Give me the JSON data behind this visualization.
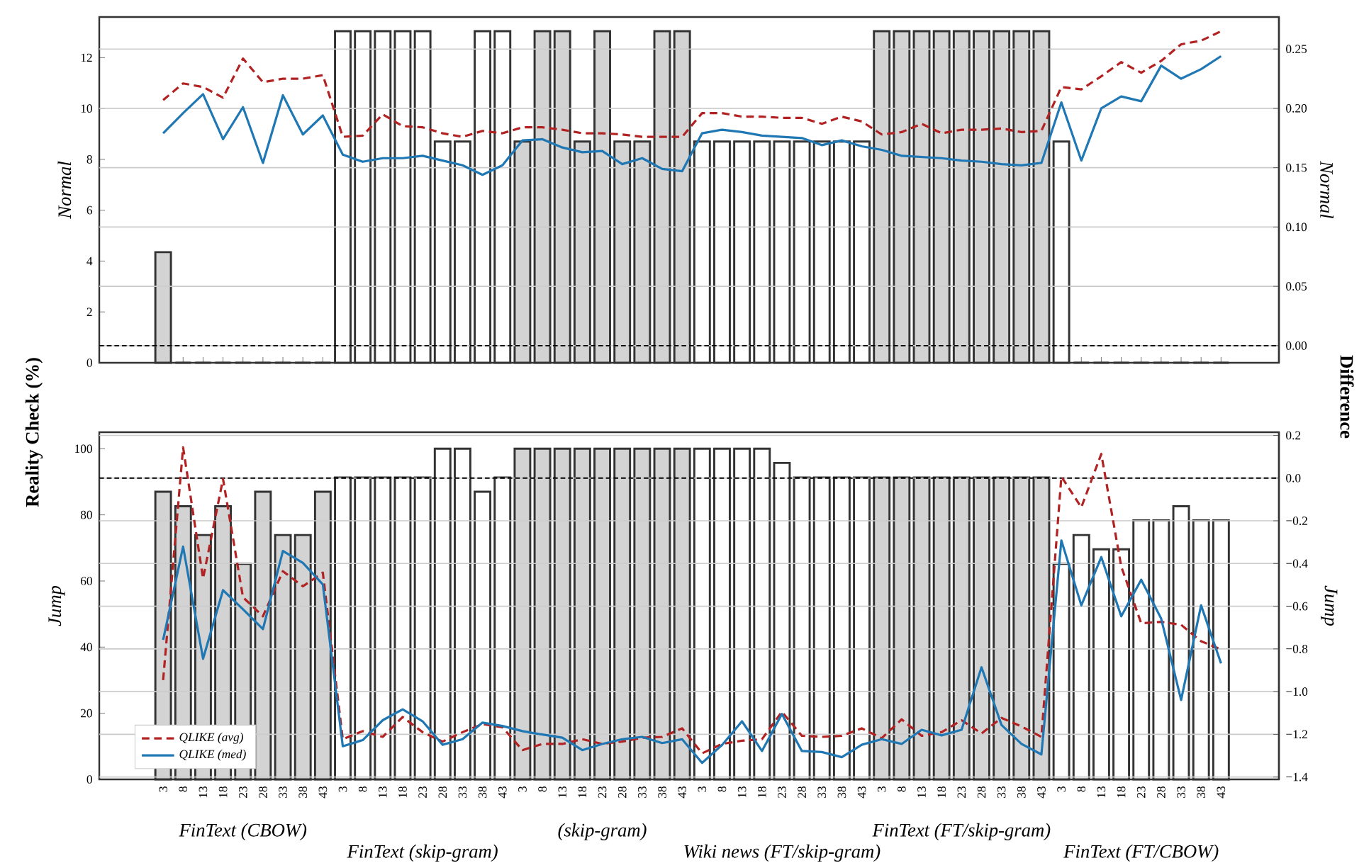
{
  "chart_data": [
    {
      "type": "bar",
      "ylabel": "Normal",
      "y2label": "Normal",
      "categories": [
        "3",
        "8",
        "13",
        "18",
        "23",
        "28",
        "33",
        "38",
        "43",
        "3",
        "8",
        "13",
        "18",
        "23",
        "28",
        "33",
        "38",
        "43",
        "3",
        "8",
        "13",
        "18",
        "23",
        "28",
        "33",
        "38",
        "43",
        "3",
        "8",
        "13",
        "18",
        "23",
        "28",
        "33",
        "38",
        "43",
        "3",
        "8",
        "13",
        "18",
        "23",
        "28",
        "33",
        "38",
        "43",
        "3",
        "8",
        "13",
        "18",
        "23",
        "28",
        "33",
        "38",
        "43"
      ],
      "ylim": [
        0,
        13.6
      ],
      "yticks": [
        0,
        2,
        4,
        6,
        8,
        10,
        12
      ],
      "y2lim": [
        -0.0144,
        0.277
      ],
      "y2ticks": [
        {
          "value": 0,
          "label": "0.00"
        },
        {
          "value": 0.05,
          "label": "0.05"
        },
        {
          "value": 0.1,
          "label": "0.10"
        },
        {
          "value": 0.15,
          "label": "0.15"
        },
        {
          "value": 0.2,
          "label": "0.20"
        },
        {
          "value": 0.25,
          "label": "0.25"
        }
      ],
      "grid": "y2",
      "tick_labels": "y",
      "ref_lines": [
        {
          "axis": "y2",
          "value": 0,
          "color": "#000000",
          "line_style": "dashed"
        }
      ],
      "series": [
        {
          "values": [
            4.35,
            0,
            0,
            0,
            0,
            0,
            0,
            0,
            0,
            13.04,
            13.04,
            13.04,
            13.04,
            13.04,
            8.7,
            8.7,
            13.04,
            13.04,
            8.7,
            13.04,
            13.04,
            8.7,
            13.04,
            8.7,
            8.7,
            13.04,
            13.04,
            8.7,
            8.7,
            8.7,
            8.7,
            8.7,
            8.7,
            8.7,
            8.7,
            8.7,
            13.04,
            13.04,
            13.04,
            13.04,
            13.04,
            13.04,
            13.04,
            13.04,
            13.04,
            8.7,
            0,
            0,
            0,
            0,
            0,
            0,
            0,
            0
          ],
          "colors": [
            "#d3d3d3",
            "#d3d3d3",
            "#d3d3d3",
            "#d3d3d3",
            "#d3d3d3",
            "#d3d3d3",
            "#d3d3d3",
            "#d3d3d3",
            "#d3d3d3",
            "#ffffff",
            "#ffffff",
            "#ffffff",
            "#ffffff",
            "#ffffff",
            "#ffffff",
            "#ffffff",
            "#ffffff",
            "#ffffff",
            "#d3d3d3",
            "#d3d3d3",
            "#d3d3d3",
            "#d3d3d3",
            "#d3d3d3",
            "#d3d3d3",
            "#d3d3d3",
            "#d3d3d3",
            "#d3d3d3",
            "#ffffff",
            "#ffffff",
            "#ffffff",
            "#ffffff",
            "#ffffff",
            "#ffffff",
            "#ffffff",
            "#ffffff",
            "#ffffff",
            "#d3d3d3",
            "#d3d3d3",
            "#d3d3d3",
            "#d3d3d3",
            "#d3d3d3",
            "#d3d3d3",
            "#d3d3d3",
            "#d3d3d3",
            "#d3d3d3",
            "#ffffff",
            "#ffffff",
            "#ffffff",
            "#ffffff",
            "#ffffff",
            "#ffffff",
            "#ffffff",
            "#ffffff",
            "#ffffff"
          ]
        },
        {
          "type": "line",
          "axis": "y2",
          "color": "#b22222",
          "line_style": "dashed",
          "values": [
            0.207,
            0.221,
            0.218,
            0.209,
            0.242,
            0.222,
            0.225,
            0.225,
            0.228,
            0.176,
            0.177,
            0.195,
            0.185,
            0.184,
            0.179,
            0.176,
            0.181,
            0.179,
            0.184,
            0.184,
            0.182,
            0.179,
            0.179,
            0.178,
            0.176,
            0.176,
            0.176,
            0.196,
            0.196,
            0.193,
            0.193,
            0.192,
            0.192,
            0.187,
            0.193,
            0.189,
            0.178,
            0.18,
            0.187,
            0.179,
            0.182,
            0.182,
            0.183,
            0.18,
            0.181,
            0.218,
            0.216,
            0.227,
            0.239,
            0.23,
            0.24,
            0.254,
            0.257,
            0.265
          ]
        },
        {
          "type": "line",
          "axis": "y2",
          "color": "#1f77b4",
          "line_style": "solid",
          "values": [
            0.179,
            0.196,
            0.212,
            0.174,
            0.201,
            0.154,
            0.211,
            0.178,
            0.194,
            0.161,
            0.155,
            0.158,
            0.158,
            0.16,
            0.156,
            0.152,
            0.144,
            0.152,
            0.173,
            0.174,
            0.167,
            0.163,
            0.164,
            0.153,
            0.158,
            0.149,
            0.147,
            0.179,
            0.182,
            0.18,
            0.177,
            0.176,
            0.175,
            0.169,
            0.173,
            0.168,
            0.165,
            0.16,
            0.159,
            0.158,
            0.156,
            0.155,
            0.153,
            0.152,
            0.154,
            0.205,
            0.156,
            0.2,
            0.21,
            0.206,
            0.236,
            0.225,
            0.233,
            0.244
          ]
        }
      ]
    },
    {
      "type": "bar",
      "ylabel": "Jump",
      "y2label": "Jump",
      "categories": [
        "3",
        "8",
        "13",
        "18",
        "23",
        "28",
        "33",
        "38",
        "43",
        "3",
        "8",
        "13",
        "18",
        "23",
        "28",
        "33",
        "38",
        "43",
        "3",
        "8",
        "13",
        "18",
        "23",
        "28",
        "33",
        "38",
        "43",
        "3",
        "8",
        "13",
        "18",
        "23",
        "28",
        "33",
        "38",
        "43",
        "3",
        "8",
        "13",
        "18",
        "23",
        "28",
        "33",
        "38",
        "43",
        "3",
        "8",
        "13",
        "18",
        "23",
        "28",
        "33",
        "38",
        "43"
      ],
      "ylim": [
        0,
        105
      ],
      "yticks": [
        0,
        20,
        40,
        60,
        80,
        100
      ],
      "y2lim": [
        -1.411,
        0.215
      ],
      "y2ticks": [
        {
          "value": -1.4,
          "label": "−1.4"
        },
        {
          "value": -1.2,
          "label": "−1.2"
        },
        {
          "value": -1.0,
          "label": "−1.0"
        },
        {
          "value": -0.8,
          "label": "−0.8"
        },
        {
          "value": -0.6,
          "label": "−0.6"
        },
        {
          "value": -0.4,
          "label": "−0.4"
        },
        {
          "value": -0.2,
          "label": "−0.2"
        },
        {
          "value": 0,
          "label": "0.0"
        },
        {
          "value": 0.2,
          "label": "0.2"
        }
      ],
      "grid": "y2",
      "legend": "bottom left",
      "ref_lines": [
        {
          "axis": "y2",
          "value": 0,
          "color": "#000000",
          "line_style": "dashed"
        }
      ],
      "annotations": [
        "FinText (CBOW)",
        "FinText (skip-gram)",
        "(skip-gram)",
        "Wiki news (FT/skip-gram)",
        "FinText (FT/skip-gram)",
        "FinText (FT/CBOW)",
        "Reality Check (%)",
        "Difference"
      ],
      "series": [
        {
          "values": [
            87,
            82.6,
            73.9,
            82.6,
            65.2,
            87,
            73.9,
            73.9,
            87,
            91.3,
            91.3,
            91.3,
            91.3,
            91.3,
            100,
            100,
            87,
            91.3,
            100,
            100,
            100,
            100,
            100,
            100,
            100,
            100,
            100,
            100,
            100,
            100,
            100,
            95.7,
            91.3,
            91.3,
            91.3,
            91.3,
            91.3,
            91.3,
            91.3,
            91.3,
            91.3,
            91.3,
            91.3,
            91.3,
            91.3,
            65.2,
            73.9,
            69.6,
            69.6,
            78.3,
            78.3,
            82.6,
            78.3,
            78.3
          ],
          "colors": [
            "#d3d3d3",
            "#d3d3d3",
            "#d3d3d3",
            "#d3d3d3",
            "#d3d3d3",
            "#d3d3d3",
            "#d3d3d3",
            "#d3d3d3",
            "#d3d3d3",
            "#ffffff",
            "#ffffff",
            "#ffffff",
            "#ffffff",
            "#ffffff",
            "#ffffff",
            "#ffffff",
            "#ffffff",
            "#ffffff",
            "#d3d3d3",
            "#d3d3d3",
            "#d3d3d3",
            "#d3d3d3",
            "#d3d3d3",
            "#d3d3d3",
            "#d3d3d3",
            "#d3d3d3",
            "#d3d3d3",
            "#ffffff",
            "#ffffff",
            "#ffffff",
            "#ffffff",
            "#ffffff",
            "#ffffff",
            "#ffffff",
            "#ffffff",
            "#ffffff",
            "#d3d3d3",
            "#d3d3d3",
            "#d3d3d3",
            "#d3d3d3",
            "#d3d3d3",
            "#d3d3d3",
            "#d3d3d3",
            "#d3d3d3",
            "#d3d3d3",
            "#ffffff",
            "#ffffff",
            "#ffffff",
            "#ffffff",
            "#ffffff",
            "#ffffff",
            "#ffffff",
            "#ffffff",
            "#ffffff"
          ]
        },
        {
          "type": "line",
          "axis": "y2",
          "name": "QLIKE (avg)",
          "color": "#b22222",
          "line_style": "dashed",
          "values": [
            -0.946,
            0.144,
            -0.47,
            -0.004,
            -0.558,
            -0.647,
            -0.436,
            -0.507,
            -0.443,
            -1.223,
            -1.185,
            -1.212,
            -1.119,
            -1.19,
            -1.234,
            -1.19,
            -1.152,
            -1.167,
            -1.274,
            -1.245,
            -1.245,
            -1.223,
            -1.245,
            -1.234,
            -1.216,
            -1.212,
            -1.172,
            -1.289,
            -1.245,
            -1.23,
            -1.223,
            -1.094,
            -1.207,
            -1.212,
            -1.207,
            -1.172,
            -1.218,
            -1.13,
            -1.207,
            -1.19,
            -1.134,
            -1.196,
            -1.123,
            -1.163,
            -1.212,
            0.007,
            -0.137,
            0.113,
            -0.414,
            -0.68,
            -0.673,
            -0.687,
            -0.764,
            -0.802
          ]
        },
        {
          "type": "line",
          "axis": "y2",
          "name": "QLIKE (med)",
          "color": "#1f77b4",
          "line_style": "solid",
          "values": [
            -0.758,
            -0.321,
            -0.846,
            -0.525,
            -0.614,
            -0.707,
            -0.341,
            -0.397,
            -0.498,
            -1.256,
            -1.227,
            -1.134,
            -1.083,
            -1.139,
            -1.249,
            -1.223,
            -1.145,
            -1.161,
            -1.185,
            -1.201,
            -1.216,
            -1.274,
            -1.245,
            -1.223,
            -1.212,
            -1.241,
            -1.223,
            -1.334,
            -1.25,
            -1.139,
            -1.278,
            -1.105,
            -1.278,
            -1.283,
            -1.307,
            -1.249,
            -1.223,
            -1.245,
            -1.179,
            -1.205,
            -1.179,
            -0.886,
            -1.156,
            -1.245,
            -1.294,
            -0.292,
            -0.596,
            -0.37,
            -0.647,
            -0.476,
            -0.658,
            -1.039,
            -0.596,
            -0.868
          ]
        }
      ]
    }
  ]
}
